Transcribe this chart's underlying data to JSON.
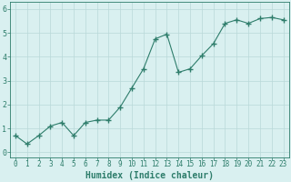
{
  "x": [
    0,
    1,
    2,
    3,
    4,
    5,
    6,
    7,
    8,
    9,
    10,
    11,
    12,
    13,
    14,
    15,
    16,
    17,
    18,
    19,
    20,
    21,
    22,
    23
  ],
  "y": [
    0.7,
    0.35,
    0.7,
    1.1,
    1.25,
    0.7,
    1.25,
    1.35,
    1.35,
    1.9,
    2.7,
    3.5,
    4.75,
    4.95,
    3.35,
    3.5,
    4.05,
    4.55,
    5.4,
    5.55,
    5.4,
    5.6,
    5.65,
    5.55
  ],
  "xlim": [
    -0.5,
    23.5
  ],
  "ylim": [
    -0.2,
    6.3
  ],
  "yticks": [
    0,
    1,
    2,
    3,
    4,
    5,
    6
  ],
  "xtick_labels": [
    "0",
    "1",
    "2",
    "3",
    "4",
    "5",
    "6",
    "7",
    "8",
    "9",
    "10",
    "11",
    "12",
    "13",
    "14",
    "15",
    "16",
    "17",
    "18",
    "19",
    "20",
    "21",
    "22",
    "23"
  ],
  "xlabel": "Humidex (Indice chaleur)",
  "line_color": "#2e7d6b",
  "marker": "+",
  "marker_size": 4,
  "bg_color": "#d9f0f0",
  "grid_color": "#b8d8d8",
  "axis_color": "#2e7d6b",
  "tick_color": "#2e7d6b",
  "label_color": "#2e7d6b",
  "xlabel_fontsize": 7,
  "tick_fontsize": 5.5
}
